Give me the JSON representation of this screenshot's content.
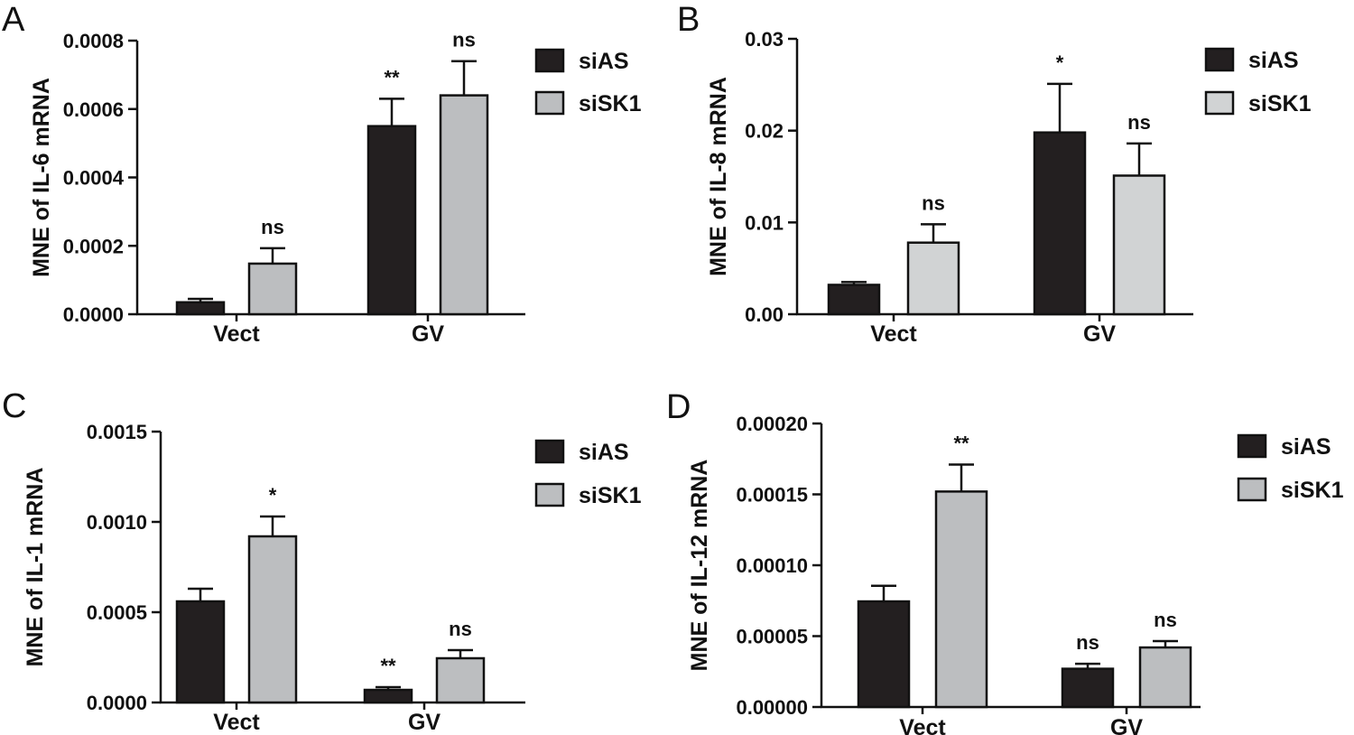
{
  "chart_data": [
    {
      "panel": "A",
      "type": "bar",
      "ylabel": "MNE of IL-6 mRNA",
      "categories": [
        "Vect",
        "GV"
      ],
      "yticks": [
        "0.0000",
        "0.0002",
        "0.0004",
        "0.0006",
        "0.0008"
      ],
      "ylim": [
        0,
        0.0008
      ],
      "grid": false,
      "legend": "right",
      "series": [
        {
          "name": "siAS",
          "color": "#231f20",
          "values": [
            3.5e-05,
            0.00055
          ],
          "errors": [
            1e-05,
            8e-05
          ],
          "significance": [
            "",
            "**"
          ]
        },
        {
          "name": "siSK1",
          "color": "#bcbec0",
          "values": [
            0.000148,
            0.00064
          ],
          "errors": [
            4.5e-05,
            0.0001
          ],
          "significance": [
            "ns",
            "ns"
          ]
        }
      ]
    },
    {
      "panel": "B",
      "type": "bar",
      "ylabel": "MNE of IL-8 mRNA",
      "categories": [
        "Vect",
        "GV"
      ],
      "yticks": [
        "0.00",
        "0.01",
        "0.02",
        "0.03"
      ],
      "ylim": [
        0,
        0.03
      ],
      "grid": false,
      "legend": "right",
      "series": [
        {
          "name": "siAS",
          "color": "#231f20",
          "values": [
            0.0032,
            0.0198
          ],
          "errors": [
            0.0003,
            0.0053
          ],
          "significance": [
            "",
            "*"
          ]
        },
        {
          "name": "siSK1",
          "color": "#d1d3d4",
          "values": [
            0.0078,
            0.0151
          ],
          "errors": [
            0.002,
            0.0035
          ],
          "significance": [
            "ns",
            "ns"
          ]
        }
      ]
    },
    {
      "panel": "C",
      "type": "bar",
      "ylabel": "MNE of IL-1 mRNA",
      "categories": [
        "Vect",
        "GV"
      ],
      "yticks": [
        "0.0000",
        "0.0005",
        "0.0010",
        "0.0015"
      ],
      "ylim": [
        0,
        0.0015
      ],
      "grid": false,
      "legend": "right",
      "series": [
        {
          "name": "siAS",
          "color": "#231f20",
          "values": [
            0.00056,
            7e-05
          ],
          "errors": [
            7e-05,
            1.5e-05
          ],
          "significance": [
            "",
            "**"
          ]
        },
        {
          "name": "siSK1",
          "color": "#bcbec0",
          "values": [
            0.00092,
            0.000245
          ],
          "errors": [
            0.00011,
            4.5e-05
          ],
          "significance": [
            "*",
            "ns"
          ]
        }
      ]
    },
    {
      "panel": "D",
      "type": "bar",
      "ylabel": "MNE of IL-12 mRNA",
      "categories": [
        "Vect",
        "GV"
      ],
      "yticks": [
        "0.00000",
        "0.00005",
        "0.00010",
        "0.00015",
        "0.00020"
      ],
      "ylim": [
        0,
        0.0002
      ],
      "grid": false,
      "legend": "right",
      "series": [
        {
          "name": "siAS",
          "color": "#231f20",
          "values": [
            7.45e-05,
            2.7e-05
          ],
          "errors": [
            1.1e-05,
            3.5e-06
          ],
          "significance": [
            "",
            "ns"
          ]
        },
        {
          "name": "siSK1",
          "color": "#bcbec0",
          "values": [
            0.000152,
            4.2e-05
          ],
          "errors": [
            1.9e-05,
            4.5e-06
          ],
          "significance": [
            "**",
            "ns"
          ]
        }
      ]
    }
  ]
}
